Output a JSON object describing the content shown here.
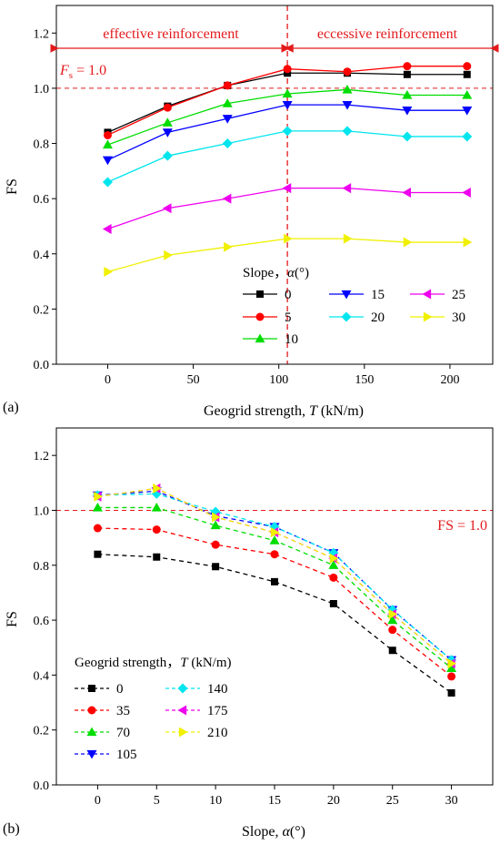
{
  "colors": {
    "0": "#000000",
    "5": "#ff0000",
    "10": "#00dd00",
    "15": "#0000ff",
    "20": "#00e5ee",
    "25": "#ee00ee",
    "30": "#f0f000",
    "35": "#ff0000",
    "70": "#00dd00",
    "105": "#0000ff",
    "140": "#00e5ee",
    "175": "#ee00ee",
    "210": "#f0f000",
    "annotation": "#e31a1c"
  },
  "chart_data": [
    {
      "type": "line",
      "panel_label": "(a)",
      "xlabel_prefix": "Geogrid strength, ",
      "xlabel_var": "T",
      "xlabel_suffix": " (kN/m)",
      "ylabel": "FS",
      "xlim": [
        -30,
        225
      ],
      "ylim": [
        0.0,
        1.3
      ],
      "xticks": [
        "0",
        "50",
        "100",
        "150",
        "200"
      ],
      "xtick_values": [
        0,
        50,
        100,
        150,
        200
      ],
      "yticks": [
        "0.0",
        "0.2",
        "0.4",
        "0.6",
        "0.8",
        "1.0",
        "1.2"
      ],
      "ytick_values": [
        0.0,
        0.2,
        0.4,
        0.6,
        0.8,
        1.0,
        1.2
      ],
      "x": [
        0,
        35,
        70,
        105,
        140,
        175,
        210
      ],
      "series": [
        {
          "name": "0",
          "marker": "square",
          "values": [
            0.84,
            0.935,
            1.01,
            1.055,
            1.055,
            1.05,
            1.05
          ]
        },
        {
          "name": "5",
          "marker": "circle",
          "values": [
            0.83,
            0.93,
            1.01,
            1.07,
            1.06,
            1.08,
            1.08
          ]
        },
        {
          "name": "10",
          "marker": "triangle-up",
          "values": [
            0.795,
            0.875,
            0.945,
            0.98,
            0.995,
            0.975,
            0.975
          ]
        },
        {
          "name": "15",
          "marker": "triangle-down",
          "values": [
            0.74,
            0.84,
            0.89,
            0.94,
            0.94,
            0.92,
            0.92
          ]
        },
        {
          "name": "20",
          "marker": "diamond",
          "values": [
            0.66,
            0.755,
            0.8,
            0.845,
            0.845,
            0.825,
            0.825
          ]
        },
        {
          "name": "25",
          "marker": "triangle-left",
          "values": [
            0.49,
            0.565,
            0.6,
            0.638,
            0.638,
            0.622,
            0.622
          ]
        },
        {
          "name": "30",
          "marker": "triangle-right",
          "values": [
            0.335,
            0.395,
            0.425,
            0.455,
            0.455,
            0.442,
            0.442
          ]
        }
      ],
      "legend_title_prefix": "Slope，",
      "legend_title_var": "α",
      "legend_title_suffix": "(°)",
      "hline": 1.0,
      "hline_label_var": "F",
      "hline_label_sub": "s",
      "hline_label_rest": " = 1.0",
      "vline": 105,
      "region_left_label": "effective reinforcement",
      "region_right_label": "eccessive reinforcement"
    },
    {
      "type": "line",
      "panel_label": "(b)",
      "xlabel_prefix": "Slope, ",
      "xlabel_var": "α",
      "xlabel_suffix": "(°)",
      "ylabel": "FS",
      "xlim": [
        -3.5,
        33.5
      ],
      "ylim": [
        0.0,
        1.3
      ],
      "xticks": [
        "0",
        "5",
        "10",
        "15",
        "20",
        "25",
        "30"
      ],
      "xtick_values": [
        0,
        5,
        10,
        15,
        20,
        25,
        30
      ],
      "yticks": [
        "0.0",
        "0.2",
        "0.4",
        "0.6",
        "0.8",
        "1.0",
        "1.2"
      ],
      "ytick_values": [
        0.0,
        0.2,
        0.4,
        0.6,
        0.8,
        1.0,
        1.2
      ],
      "x": [
        0,
        5,
        10,
        15,
        20,
        25,
        30
      ],
      "series": [
        {
          "name": "0",
          "marker": "square",
          "values": [
            0.84,
            0.83,
            0.795,
            0.74,
            0.66,
            0.49,
            0.335
          ]
        },
        {
          "name": "35",
          "marker": "circle",
          "values": [
            0.935,
            0.93,
            0.875,
            0.84,
            0.755,
            0.565,
            0.395
          ]
        },
        {
          "name": "70",
          "marker": "triangle-up",
          "values": [
            1.01,
            1.01,
            0.945,
            0.89,
            0.8,
            0.6,
            0.425
          ]
        },
        {
          "name": "105",
          "marker": "triangle-down",
          "values": [
            1.055,
            1.07,
            0.98,
            0.94,
            0.845,
            0.638,
            0.455
          ]
        },
        {
          "name": "140",
          "marker": "diamond",
          "values": [
            1.055,
            1.06,
            0.995,
            0.94,
            0.845,
            0.638,
            0.455
          ]
        },
        {
          "name": "175",
          "marker": "triangle-left",
          "values": [
            1.05,
            1.08,
            0.975,
            0.92,
            0.825,
            0.622,
            0.442
          ]
        },
        {
          "name": "210",
          "marker": "triangle-right",
          "values": [
            1.05,
            1.08,
            0.975,
            0.92,
            0.825,
            0.622,
            0.442
          ]
        }
      ],
      "legend_title_prefix": "Geogrid strength，",
      "legend_title_var": "T",
      "legend_title_suffix": " (kN/m)",
      "hline": 1.0,
      "hline_label": "FS = 1.0"
    }
  ]
}
